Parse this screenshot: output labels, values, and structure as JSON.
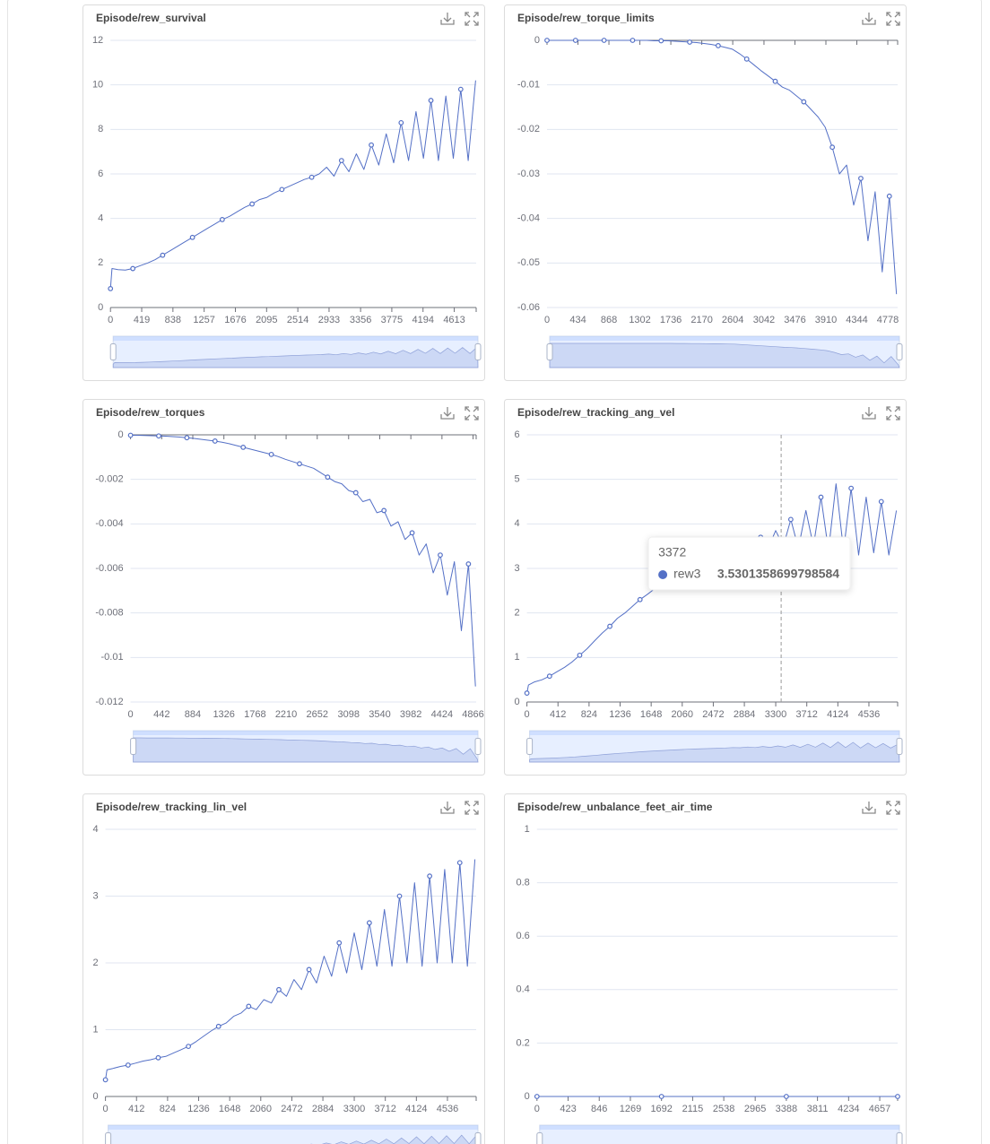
{
  "chart_data": [
    {
      "type": "line",
      "title": "Episode/rew_survival",
      "color": "#5470c6",
      "grid": true,
      "x": [
        0,
        20,
        100,
        200,
        300,
        400,
        500,
        600,
        700,
        800,
        900,
        1000,
        1100,
        1200,
        1300,
        1400,
        1500,
        1600,
        1700,
        1800,
        1900,
        2000,
        2100,
        2200,
        2300,
        2400,
        2500,
        2600,
        2700,
        2800,
        2900,
        3000,
        3100,
        3200,
        3300,
        3400,
        3500,
        3600,
        3700,
        3800,
        3900,
        4000,
        4100,
        4200,
        4300,
        4400,
        4500,
        4600,
        4700,
        4800,
        4900
      ],
      "values": [
        0.85,
        1.75,
        1.7,
        1.68,
        1.75,
        1.88,
        2.0,
        2.15,
        2.35,
        2.55,
        2.75,
        2.95,
        3.15,
        3.35,
        3.55,
        3.75,
        3.95,
        4.1,
        4.3,
        4.5,
        4.65,
        4.85,
        4.95,
        5.15,
        5.3,
        5.45,
        5.6,
        5.75,
        5.85,
        6.0,
        6.3,
        5.9,
        6.6,
        6.1,
        6.9,
        6.2,
        7.3,
        6.4,
        7.8,
        6.5,
        8.3,
        6.6,
        8.8,
        6.7,
        9.3,
        6.6,
        9.5,
        6.7,
        9.8,
        6.6,
        10.2
      ],
      "xlim": [
        0,
        4907
      ],
      "xticks": [
        0,
        419,
        838,
        1257,
        1676,
        2095,
        2514,
        2933,
        3356,
        3775,
        4194,
        4613
      ],
      "ylim": [
        0,
        12
      ],
      "yticks": [
        0,
        2,
        4,
        6,
        8,
        10,
        12
      ]
    },
    {
      "type": "line",
      "title": "Episode/rew_torque_limits",
      "color": "#5470c6",
      "grid": true,
      "x": [
        0,
        100,
        200,
        300,
        400,
        500,
        600,
        700,
        800,
        900,
        1000,
        1100,
        1200,
        1300,
        1400,
        1500,
        1600,
        1700,
        1800,
        1900,
        2000,
        2100,
        2200,
        2300,
        2400,
        2500,
        2600,
        2700,
        2800,
        2900,
        3000,
        3100,
        3200,
        3300,
        3400,
        3500,
        3600,
        3700,
        3800,
        3900,
        4000,
        4100,
        4200,
        4300,
        4400,
        4500,
        4600,
        4700,
        4800,
        4900
      ],
      "values": [
        0,
        0,
        0,
        0,
        0,
        0,
        0,
        0,
        0,
        0,
        0,
        0,
        0,
        0,
        0,
        -0.0001,
        -0.0001,
        -0.0001,
        -0.0002,
        -0.0003,
        -0.0004,
        -0.0005,
        -0.0007,
        -0.0009,
        -0.0012,
        -0.0016,
        -0.002,
        -0.003,
        -0.0042,
        -0.0055,
        -0.0068,
        -0.008,
        -0.0092,
        -0.0105,
        -0.0112,
        -0.0125,
        -0.0138,
        -0.0155,
        -0.0172,
        -0.0195,
        -0.024,
        -0.03,
        -0.028,
        -0.037,
        -0.031,
        -0.045,
        -0.034,
        -0.052,
        -0.035,
        -0.057
      ],
      "xlim": [
        0,
        4916
      ],
      "xticks": [
        0,
        434,
        868,
        1302,
        1736,
        2170,
        2604,
        3042,
        3476,
        3910,
        4344,
        4778
      ],
      "ylim": [
        -0.06,
        0
      ],
      "yticks": [
        0,
        -0.01,
        -0.02,
        -0.03,
        -0.04,
        -0.05,
        -0.06
      ]
    },
    {
      "type": "line",
      "title": "Episode/rew_torques",
      "color": "#5470c6",
      "grid": true,
      "x": [
        0,
        100,
        200,
        300,
        400,
        500,
        600,
        700,
        800,
        900,
        1000,
        1100,
        1200,
        1300,
        1400,
        1500,
        1600,
        1700,
        1800,
        1900,
        2000,
        2100,
        2200,
        2300,
        2400,
        2500,
        2600,
        2700,
        2800,
        2900,
        3000,
        3100,
        3200,
        3300,
        3400,
        3500,
        3600,
        3700,
        3800,
        3900,
        4000,
        4100,
        4200,
        4300,
        4400,
        4500,
        4600,
        4700,
        4800,
        4900
      ],
      "values": [
        -2e-05,
        -2e-05,
        -3e-05,
        -4e-05,
        -5e-05,
        -6e-05,
        -8e-05,
        -0.0001,
        -0.00013,
        -0.00016,
        -0.0002,
        -0.00024,
        -0.00028,
        -0.00033,
        -0.0004,
        -0.00048,
        -0.00056,
        -0.00064,
        -0.00072,
        -0.0008,
        -0.00088,
        -0.00098,
        -0.0011,
        -0.0012,
        -0.0013,
        -0.0014,
        -0.0015,
        -0.0017,
        -0.0019,
        -0.0021,
        -0.0022,
        -0.0025,
        -0.0026,
        -0.003,
        -0.0029,
        -0.0035,
        -0.0034,
        -0.0041,
        -0.0039,
        -0.0047,
        -0.0044,
        -0.0054,
        -0.0049,
        -0.0062,
        -0.0054,
        -0.0072,
        -0.0057,
        -0.0088,
        -0.0058,
        -0.0113
      ],
      "xlim": [
        0,
        4910
      ],
      "xticks": [
        0,
        442,
        884,
        1326,
        1768,
        2210,
        2652,
        3098,
        3540,
        3982,
        4424,
        4866
      ],
      "ylim": [
        -0.012,
        0
      ],
      "yticks": [
        0,
        -0.002,
        -0.004,
        -0.006,
        -0.008,
        -0.01,
        -0.012
      ]
    },
    {
      "type": "line",
      "title": "Episode/rew_tracking_ang_vel",
      "color": "#5470c6",
      "grid": true,
      "x": [
        0,
        20,
        100,
        200,
        300,
        400,
        500,
        600,
        700,
        800,
        900,
        1000,
        1100,
        1200,
        1300,
        1400,
        1500,
        1600,
        1700,
        1800,
        1900,
        2000,
        2100,
        2200,
        2300,
        2400,
        2500,
        2600,
        2700,
        2800,
        2900,
        3000,
        3100,
        3200,
        3300,
        3400,
        3500,
        3600,
        3700,
        3800,
        3900,
        4000,
        4100,
        4200,
        4300,
        4400,
        4500,
        4600,
        4700,
        4800,
        4900
      ],
      "values": [
        0.2,
        0.38,
        0.45,
        0.5,
        0.58,
        0.68,
        0.78,
        0.9,
        1.05,
        1.2,
        1.38,
        1.55,
        1.7,
        1.88,
        2.0,
        2.15,
        2.3,
        2.42,
        2.55,
        2.65,
        2.75,
        2.85,
        2.95,
        3.02,
        3.1,
        3.15,
        3.22,
        3.3,
        3.4,
        3.35,
        3.55,
        3.4,
        3.7,
        3.45,
        3.85,
        3.5,
        4.1,
        3.45,
        4.3,
        3.5,
        4.6,
        3.4,
        4.9,
        3.4,
        4.8,
        3.3,
        4.6,
        3.35,
        4.5,
        3.3,
        4.3
      ],
      "xlim": [
        0,
        4917
      ],
      "xticks": [
        0,
        412,
        824,
        1236,
        1648,
        2060,
        2472,
        2884,
        3300,
        3712,
        4124,
        4536
      ],
      "ylim": [
        0,
        6
      ],
      "yticks": [
        0,
        1,
        2,
        3,
        4,
        5,
        6
      ],
      "tooltip": {
        "x": 3372,
        "series": "rew3",
        "value": 3.5301358699798584
      }
    },
    {
      "type": "line",
      "title": "Episode/rew_tracking_lin_vel",
      "color": "#5470c6",
      "grid": true,
      "x": [
        0,
        20,
        100,
        200,
        300,
        400,
        500,
        600,
        700,
        800,
        900,
        1000,
        1100,
        1200,
        1300,
        1400,
        1500,
        1600,
        1700,
        1800,
        1900,
        2000,
        2100,
        2200,
        2300,
        2400,
        2500,
        2600,
        2700,
        2800,
        2900,
        3000,
        3100,
        3200,
        3300,
        3400,
        3500,
        3600,
        3700,
        3800,
        3900,
        4000,
        4100,
        4200,
        4300,
        4400,
        4500,
        4600,
        4700,
        4800,
        4900
      ],
      "values": [
        0.25,
        0.4,
        0.42,
        0.45,
        0.47,
        0.5,
        0.53,
        0.55,
        0.58,
        0.6,
        0.65,
        0.7,
        0.75,
        0.82,
        0.9,
        0.98,
        1.05,
        1.1,
        1.2,
        1.25,
        1.35,
        1.3,
        1.45,
        1.4,
        1.6,
        1.5,
        1.75,
        1.6,
        1.9,
        1.7,
        2.1,
        1.8,
        2.3,
        1.85,
        2.45,
        1.9,
        2.6,
        1.95,
        2.8,
        1.95,
        3.0,
        2.0,
        3.2,
        1.95,
        3.3,
        2.0,
        3.4,
        2.0,
        3.5,
        1.95,
        3.55
      ],
      "xlim": [
        0,
        4917
      ],
      "xticks": [
        0,
        412,
        824,
        1236,
        1648,
        2060,
        2472,
        2884,
        3300,
        3712,
        4124,
        4536
      ],
      "ylim": [
        0,
        4
      ],
      "yticks": [
        0,
        1,
        2,
        3,
        4
      ]
    },
    {
      "type": "line",
      "title": "Episode/rew_unbalance_feet_air_time",
      "color": "#5470c6",
      "grid": true,
      "x": [
        0,
        423,
        846,
        1269,
        1692,
        2115,
        2538,
        2965,
        3388,
        3811,
        4234,
        4657,
        4900
      ],
      "values": [
        0,
        0,
        0,
        0,
        0,
        0,
        0,
        0,
        0,
        0,
        0,
        0,
        0
      ],
      "xlim": [
        0,
        4900
      ],
      "xticks": [
        0,
        423,
        846,
        1269,
        1692,
        2115,
        2538,
        2965,
        3388,
        3811,
        4234,
        4657
      ],
      "ylim": [
        0,
        1
      ],
      "yticks": [
        0,
        0.2,
        0.4,
        0.6,
        0.8,
        1
      ]
    }
  ]
}
